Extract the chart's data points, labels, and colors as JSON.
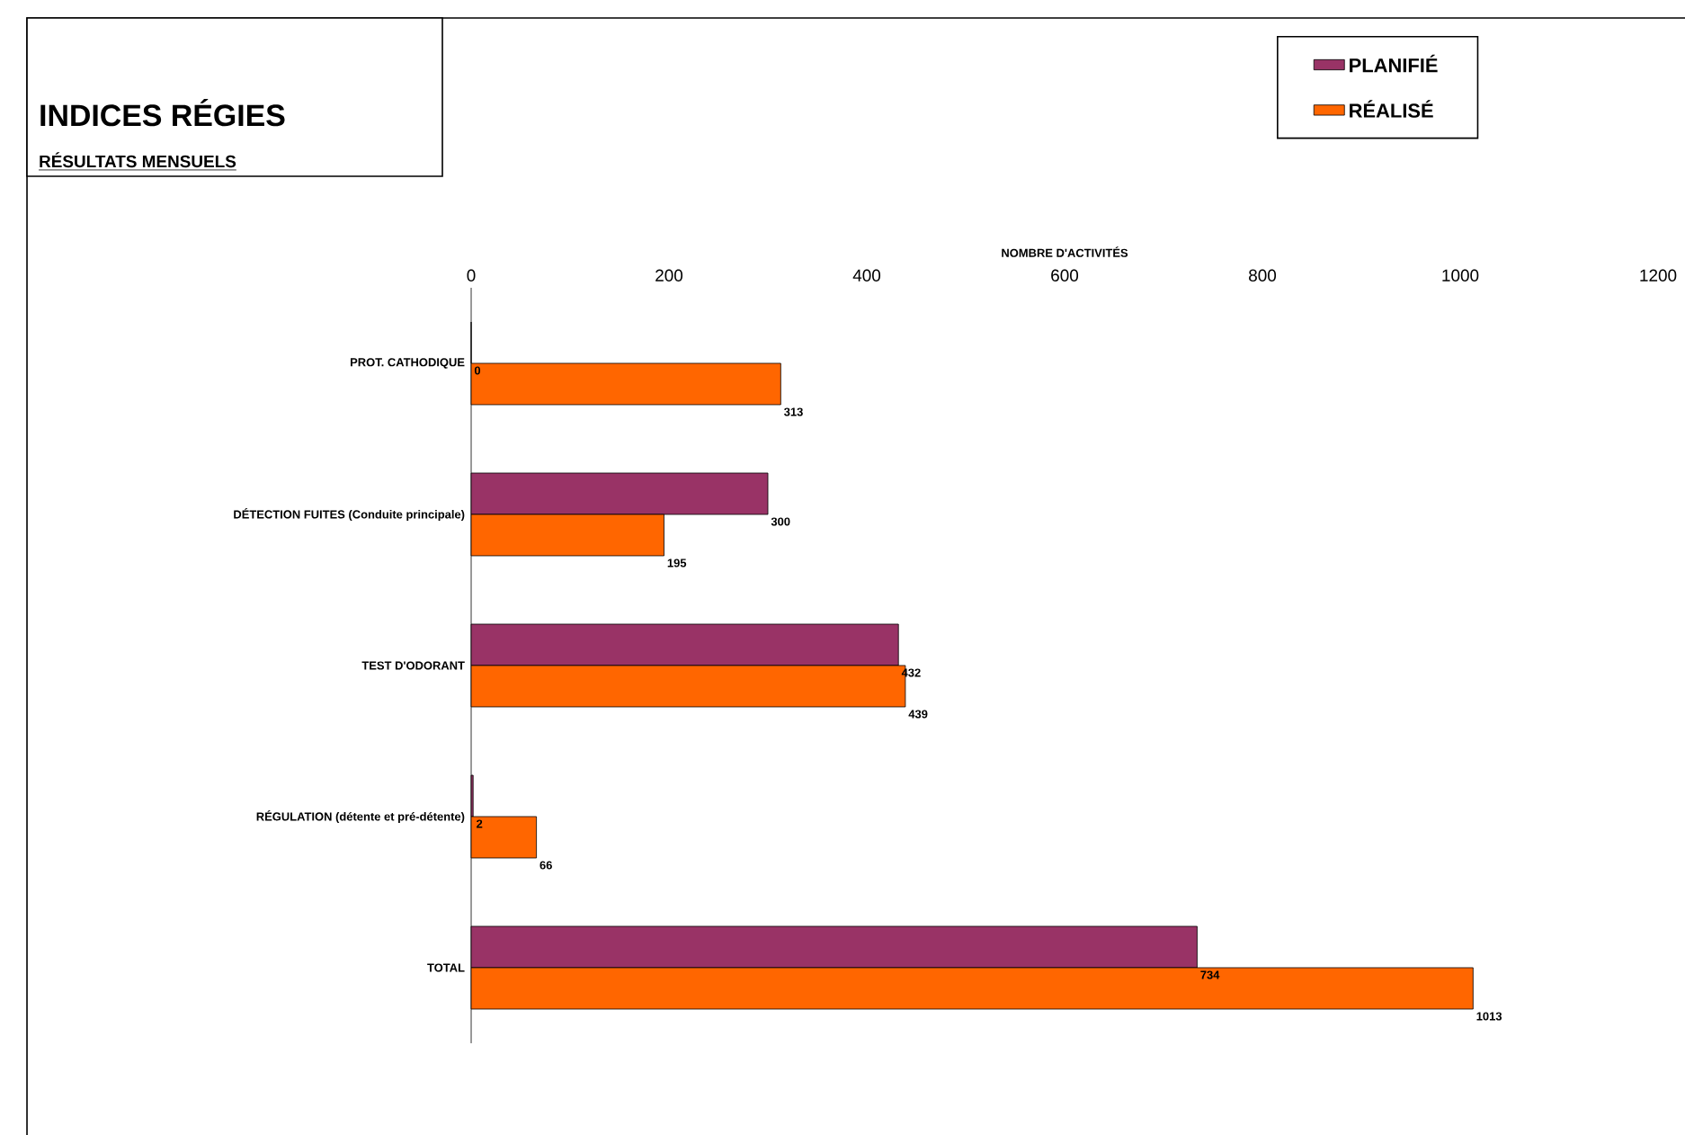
{
  "chart_data": {
    "type": "bar",
    "orientation": "horizontal",
    "title": "INDICES RÉGIES",
    "subtitle": "RÉSULTATS MENSUELS",
    "xlabel": "NOMBRE D'ACTIVITÉS",
    "categories": [
      "PROT. CATHODIQUE",
      "DÉTECTION FUITES (Conduite principale)",
      "TEST D'ODORANT",
      "RÉGULATION (détente et pré-détente)",
      "TOTAL"
    ],
    "series": [
      {
        "name": "PLANIFIÉ",
        "color": "#993366",
        "values": [
          0,
          300,
          432,
          2,
          734
        ]
      },
      {
        "name": "RÉALISÉ",
        "color": "#ff6600",
        "values": [
          313,
          195,
          439,
          66,
          1013
        ]
      }
    ],
    "xlim": [
      0,
      1200
    ],
    "xticks": [
      0,
      200,
      400,
      600,
      800,
      1000,
      1200
    ],
    "data_labels": true,
    "legend": "top right",
    "grid": false
  }
}
